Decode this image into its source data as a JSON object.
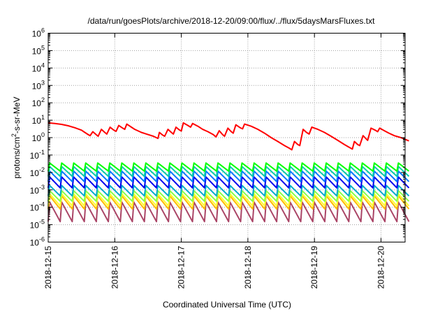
{
  "chart_data": {
    "type": "line",
    "title": "/data/run/goesPlots/archive/2018-12-20/09:00/flux/../flux/5daysMarsFluxes.txt",
    "xlabel": "Coordinated Universal Time (UTC)",
    "ylabel": {
      "base": "protons/cm",
      "sup": "2",
      "rest": "-s-sr-MeV"
    },
    "x_ticks": [
      "2018-12-15",
      "2018-12-16",
      "2018-12-17",
      "2018-12-18",
      "2018-12-19",
      "2018-12-20"
    ],
    "y_ticks": [
      {
        "base": "10",
        "exp": "6"
      },
      {
        "base": "10",
        "exp": "5"
      },
      {
        "base": "10",
        "exp": "4"
      },
      {
        "base": "10",
        "exp": "3"
      },
      {
        "base": "10",
        "exp": "2"
      },
      {
        "base": "10",
        "exp": "1"
      },
      {
        "base": "10",
        "exp": "0"
      },
      {
        "base": "10",
        "exp": "-1"
      },
      {
        "base": "10",
        "exp": "-2"
      },
      {
        "base": "10",
        "exp": "-3"
      },
      {
        "base": "10",
        "exp": "-4"
      },
      {
        "base": "10",
        "exp": "-5"
      },
      {
        "base": "10",
        "exp": "-6"
      }
    ],
    "x_unit": "days since 2018-12-15 00:00 UTC",
    "xlim": [
      0,
      5.42
    ],
    "y_scale": "log",
    "ylim_exp": [
      -6,
      6
    ],
    "grid": true,
    "series": [
      {
        "color": "#ff0000",
        "points": [
          [
            0.0,
            7.0
          ],
          [
            0.1,
            6.5
          ],
          [
            0.2,
            5.8
          ],
          [
            0.3,
            4.8
          ],
          [
            0.4,
            3.7
          ],
          [
            0.5,
            2.7
          ],
          [
            0.55,
            2.0
          ],
          [
            0.6,
            1.5
          ],
          [
            0.63,
            1.3
          ],
          [
            0.67,
            2.2
          ],
          [
            0.72,
            1.5
          ],
          [
            0.75,
            1.2
          ],
          [
            0.8,
            3.0
          ],
          [
            0.85,
            2.0
          ],
          [
            0.88,
            1.6
          ],
          [
            0.93,
            4.0
          ],
          [
            0.98,
            2.8
          ],
          [
            1.02,
            2.3
          ],
          [
            1.06,
            5.0
          ],
          [
            1.12,
            3.5
          ],
          [
            1.15,
            3.0
          ],
          [
            1.18,
            6.0
          ],
          [
            1.25,
            4.0
          ],
          [
            1.3,
            3.0
          ],
          [
            1.4,
            2.0
          ],
          [
            1.5,
            1.5
          ],
          [
            1.58,
            1.2
          ],
          [
            1.65,
            0.9
          ],
          [
            1.67,
            2.0
          ],
          [
            1.72,
            1.4
          ],
          [
            1.75,
            1.2
          ],
          [
            1.8,
            3.0
          ],
          [
            1.85,
            2.0
          ],
          [
            1.88,
            1.6
          ],
          [
            1.92,
            4.0
          ],
          [
            1.97,
            2.8
          ],
          [
            2.0,
            2.4
          ],
          [
            2.03,
            7.0
          ],
          [
            2.1,
            5.0
          ],
          [
            2.14,
            4.0
          ],
          [
            2.17,
            6.5
          ],
          [
            2.25,
            4.5
          ],
          [
            2.32,
            3.0
          ],
          [
            2.4,
            2.2
          ],
          [
            2.48,
            1.5
          ],
          [
            2.52,
            1.1
          ],
          [
            2.57,
            2.5
          ],
          [
            2.62,
            1.5
          ],
          [
            2.65,
            1.2
          ],
          [
            2.7,
            3.5
          ],
          [
            2.75,
            2.2
          ],
          [
            2.78,
            1.8
          ],
          [
            2.82,
            5.5
          ],
          [
            2.88,
            3.8
          ],
          [
            2.92,
            3.2
          ],
          [
            2.95,
            6.0
          ],
          [
            3.05,
            4.5
          ],
          [
            3.15,
            3.0
          ],
          [
            3.25,
            1.8
          ],
          [
            3.35,
            1.0
          ],
          [
            3.45,
            0.6
          ],
          [
            3.55,
            0.35
          ],
          [
            3.62,
            0.25
          ],
          [
            3.66,
            0.2
          ],
          [
            3.7,
            0.6
          ],
          [
            3.75,
            0.4
          ],
          [
            3.78,
            0.35
          ],
          [
            3.83,
            3.0
          ],
          [
            3.88,
            2.0
          ],
          [
            3.92,
            1.6
          ],
          [
            3.96,
            4.0
          ],
          [
            4.05,
            3.0
          ],
          [
            4.15,
            2.0
          ],
          [
            4.25,
            1.2
          ],
          [
            4.35,
            0.7
          ],
          [
            4.45,
            0.4
          ],
          [
            4.52,
            0.28
          ],
          [
            4.57,
            0.22
          ],
          [
            4.6,
            0.6
          ],
          [
            4.65,
            0.4
          ],
          [
            4.68,
            0.35
          ],
          [
            4.73,
            1.3
          ],
          [
            4.77,
            0.9
          ],
          [
            4.8,
            0.7
          ],
          [
            4.85,
            3.5
          ],
          [
            4.92,
            2.6
          ],
          [
            4.95,
            2.2
          ],
          [
            4.98,
            3.5
          ],
          [
            5.05,
            2.5
          ],
          [
            5.12,
            1.8
          ],
          [
            5.2,
            1.3
          ],
          [
            5.3,
            1.0
          ],
          [
            5.42,
            0.65
          ]
        ]
      }
    ],
    "sawtooth_series": [
      {
        "color": "#00ff00",
        "peak": 0.035,
        "trough": 0.012
      },
      {
        "color": "#00ccaa",
        "peak": 0.022,
        "trough": 0.006
      },
      {
        "color": "#0077ff",
        "peak": 0.012,
        "trough": 0.003
      },
      {
        "color": "#0000ee",
        "peak": 0.0055,
        "trough": 0.0013
      },
      {
        "color": "#00aacc",
        "peak": 0.0018,
        "trough": 0.00045
      },
      {
        "color": "#88ff44",
        "peak": 0.0009,
        "trough": 0.00022
      },
      {
        "color": "#ffff33",
        "peak": 0.0006,
        "trough": 0.00012
      },
      {
        "color": "#ffbb00",
        "peak": 0.00045,
        "trough": 8e-05
      },
      {
        "color": "#aa4466",
        "peak": 0.0002,
        "trough": 1.5e-05
      }
    ],
    "sawtooth_cycles": 30
  }
}
